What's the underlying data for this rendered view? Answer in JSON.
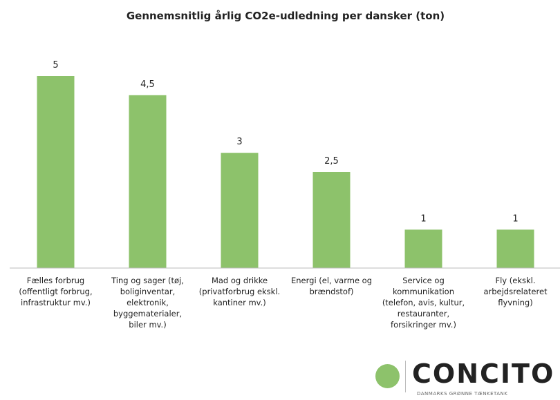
{
  "chart_data": {
    "type": "bar",
    "title": "Gennemsnitlig årlig CO2e-udledning per dansker (ton)",
    "categories": [
      "Fælles forbrug (offentligt forbrug, infrastruktur mv.)",
      "Ting og sager (tøj, boliginventar, elektronik, byggematerialer, biler mv.)",
      "Mad og drikke (privatforbrug ekskl. kantiner mv.)",
      "Energi (el, varme og brændstof)",
      "Service og kommunikation (telefon, avis, kultur, restauranter, forsikringer mv.)",
      "Fly (ekskl. arbejdsrelateret flyvning)"
    ],
    "values": [
      5,
      4.5,
      3,
      2.5,
      1,
      1
    ],
    "value_labels": [
      "5",
      "4,5",
      "3",
      "2,5",
      "1",
      "1"
    ],
    "color": "#8dc26b",
    "ylim": [
      0,
      5
    ]
  },
  "logo": {
    "name": "CONCITO",
    "tagline": "DANMARKS GRØNNE TÆNKETANK"
  }
}
